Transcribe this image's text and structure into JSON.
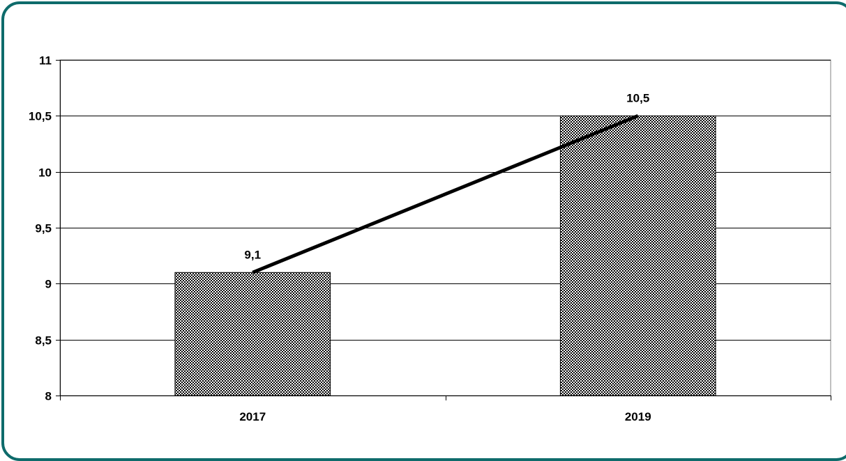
{
  "chart_data": {
    "type": "bar",
    "categories": [
      "2017",
      "2019"
    ],
    "values": [
      9.1,
      10.5
    ],
    "data_labels": [
      "9,1",
      "10,5"
    ],
    "overlay_line": true,
    "ylim": [
      8,
      11
    ],
    "yticks": [
      8,
      8.5,
      9,
      9.5,
      10,
      10.5,
      11
    ],
    "ytick_labels": [
      "8",
      "8,5",
      "9",
      "9,5",
      "10",
      "10,5",
      "11"
    ],
    "grid": true,
    "legend": "none",
    "bar_fill": "checkered",
    "line_color": "#000000",
    "frame_color": "#0e6b6b"
  }
}
